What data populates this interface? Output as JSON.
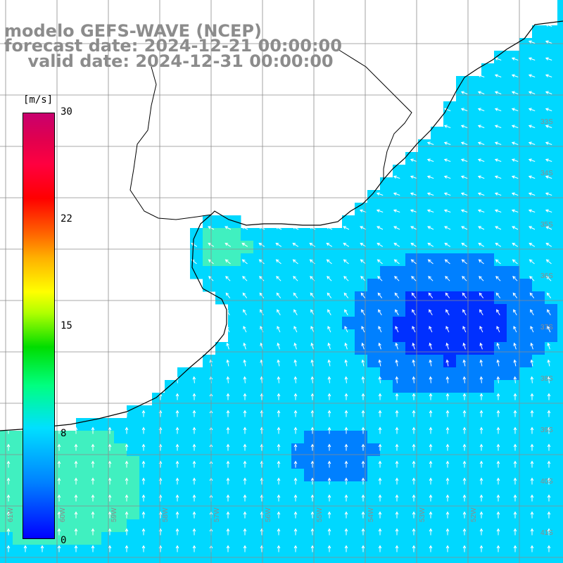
{
  "title": {
    "line1": "modelo GEFS-WAVE (NCEP)",
    "line2": "forecast date: 2024-12-21 00:00:00",
    "line3": "    valid date: 2024-12-31 00:00:00"
  },
  "colorbar": {
    "unit": "[m/s]",
    "ticks": [
      "30",
      "22",
      "15",
      "8",
      "0"
    ],
    "min": 0,
    "max": 30
  },
  "axes": {
    "lon_labels": [
      "61W",
      "60W",
      "59W",
      "58W",
      "57W",
      "56W",
      "55W",
      "54W",
      "53W",
      "52W"
    ],
    "lat_labels": [
      "33S",
      "34S",
      "35S",
      "36S",
      "37S",
      "38S",
      "39S",
      "40S",
      "41S"
    ]
  },
  "colors": {
    "strong": "#0030ff",
    "moderate": "#0080ff",
    "weak": "#00d8ff",
    "calm": "#40f0c0",
    "arrow": "#ffffff",
    "land": "#ffffff",
    "coast": "#000000",
    "grid": "#8c8c8c"
  },
  "icons": [
    "wind-arrow-icon"
  ]
}
